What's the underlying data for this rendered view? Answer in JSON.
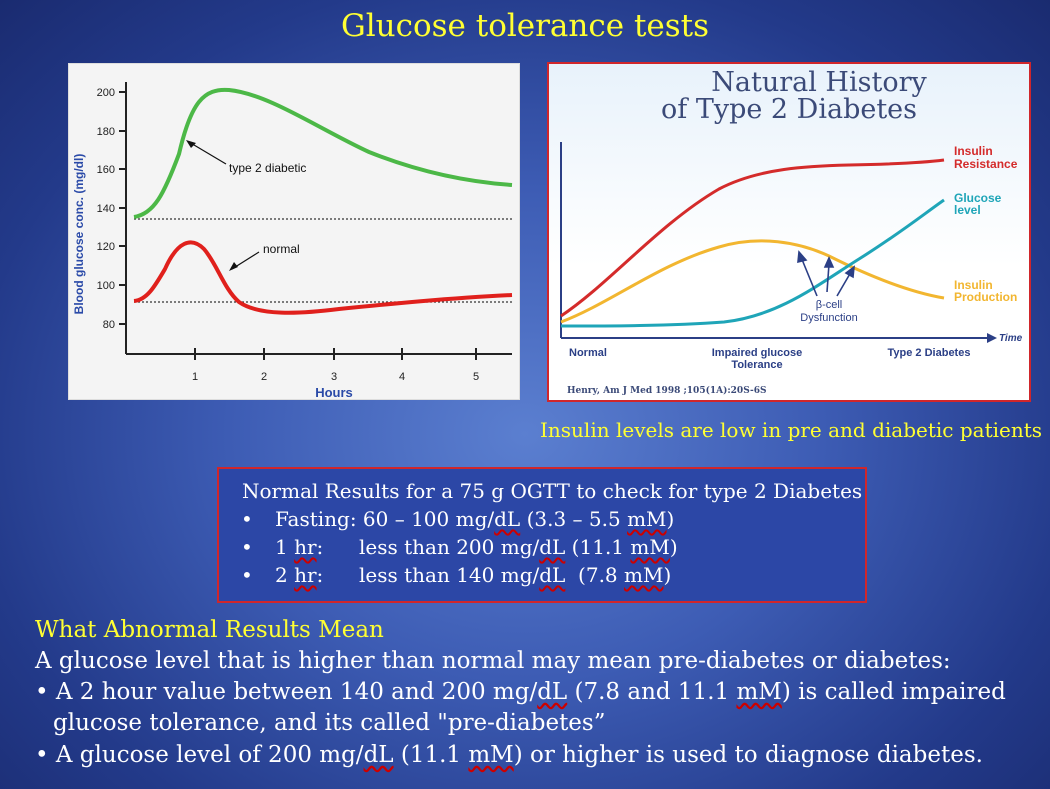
{
  "title": "Glucose tolerance tests",
  "ogtt_chart": {
    "ylabel": "Blood glucose conc. (mg/dl)",
    "xlabel": "Hours",
    "yticks": [
      "200",
      "180",
      "160",
      "140",
      "120",
      "100",
      "80"
    ],
    "xticks": [
      "1",
      "2",
      "3",
      "4",
      "5"
    ],
    "annotation_diabetic": "type 2 diabetic",
    "annotation_normal": "normal",
    "colors": {
      "diabetic": "#4cb847",
      "normal": "#e0201c"
    }
  },
  "history_chart": {
    "title_line1": "Natural History",
    "title_line2": "of Type 2 Diabetes",
    "resistance_l1": "Insulin",
    "resistance_l2": "Resistance",
    "glucose_l1": "Glucose",
    "glucose_l2": "level",
    "production_l1": "Insulin",
    "production_l2": "Production",
    "bcell_l1": "β-cell",
    "bcell_l2": "Dysfunction",
    "time_label": "Time",
    "stage_normal": "Normal",
    "stage_impaired_l1": "Impaired glucose",
    "stage_impaired_l2": "Tolerance",
    "stage_diabetes": "Type 2 Diabetes",
    "citation": "Henry, Am J Med 1998 ;105(1A):20S-6S",
    "colors": {
      "resistance": "#d42b2b",
      "glucose": "#1fa5b8",
      "production": "#f2b630"
    }
  },
  "caption": "Insulin levels are low in pre and diabetic patients",
  "results": {
    "heading": "Normal Results for a 75 g OGTT to check for type 2 Diabetes",
    "fasting_a": "Fasting: 60 – 100 mg/",
    "fasting_b": "dL",
    "fasting_c": " (3.3 – 5.5 ",
    "fasting_d": "mM",
    "fasting_e": ")",
    "one_hr_a": "1 ",
    "one_hr_b": "hr",
    "one_hr_c": ":",
    "one_hr_val_a": "less than 200 mg/",
    "one_hr_val_b": "dL",
    "one_hr_val_c": " (11.1 ",
    "one_hr_val_d": "mM",
    "one_hr_val_e": ")",
    "two_hr_a": "2 ",
    "two_hr_b": "hr",
    "two_hr_c": ":",
    "two_hr_val_a": "less than 140 mg/",
    "two_hr_val_b": "dL",
    "two_hr_val_c": "  (7.8 ",
    "two_hr_val_d": "mM",
    "two_hr_val_e": ")"
  },
  "abnormal": {
    "heading": "What Abnormal Results Mean",
    "intro": "A glucose level that is higher than normal may mean pre-diabetes or diabetes:",
    "b1_a": "• A 2 hour value between 140 and 200 mg/",
    "b1_b": "dL",
    "b1_c": " (7.8 and 11.1 ",
    "b1_d": "mM",
    "b1_e": ") is called impaired",
    "b1_line2": "glucose tolerance, and its called \"pre-diabetes”",
    "b2_a": "• A glucose level of 200 mg/",
    "b2_b": "dL",
    "b2_c": " (11.1 ",
    "b2_d": "mM",
    "b2_e": ") or higher is used to diagnose diabetes."
  }
}
